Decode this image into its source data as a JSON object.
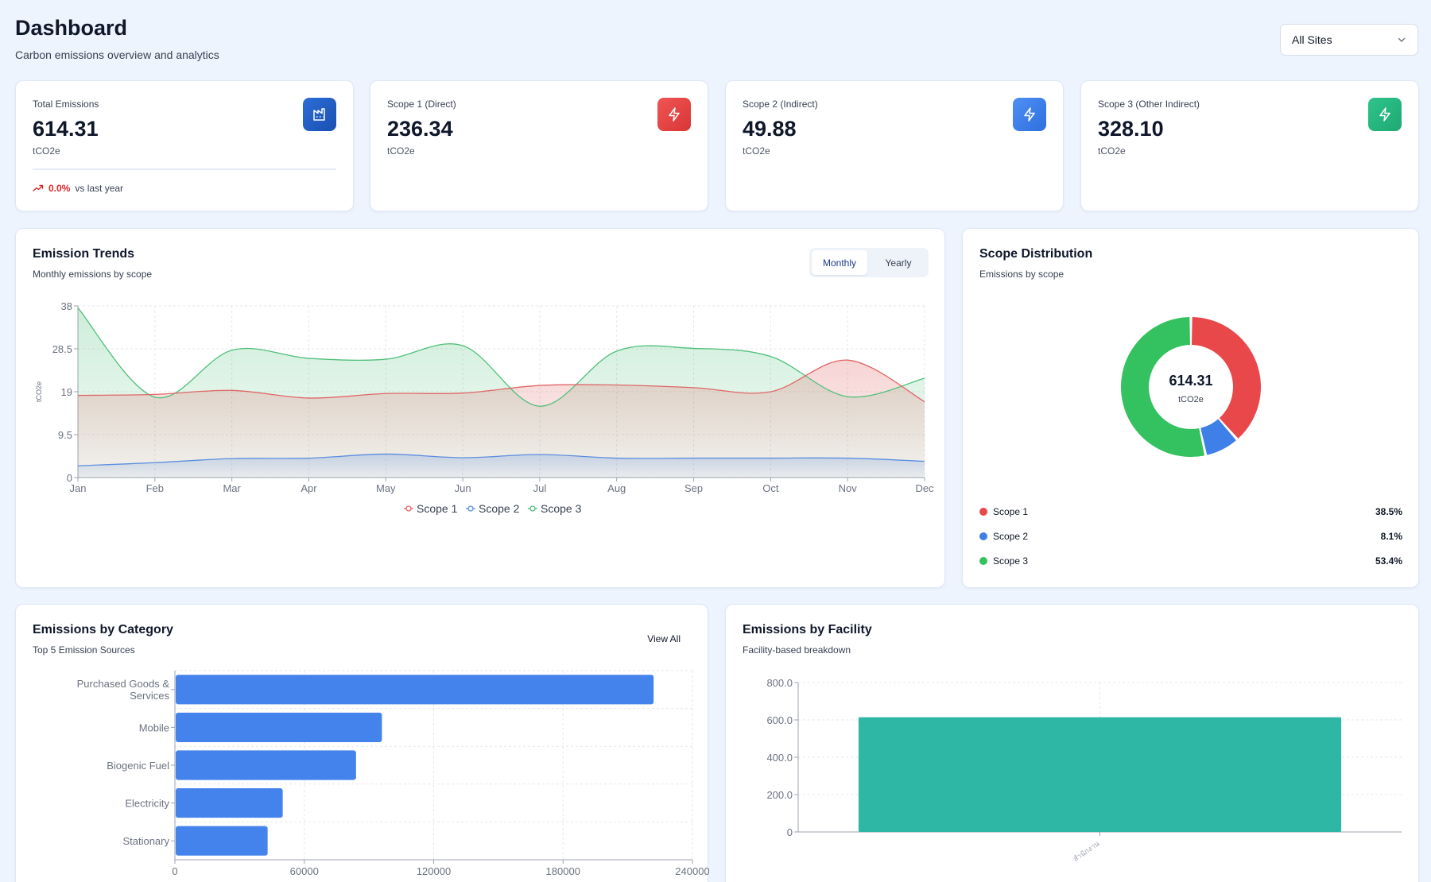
{
  "header": {
    "title": "Dashboard",
    "subtitle": "Carbon emissions overview and analytics",
    "site_filter": "All Sites"
  },
  "stats": [
    {
      "label": "Total Emissions",
      "value": "614.31",
      "unit": "tCO2e",
      "icon": "factory-icon",
      "color": "#1d5fc9",
      "trend_pct": "0.0%",
      "trend_text": "vs last year"
    },
    {
      "label": "Scope 1 (Direct)",
      "value": "236.34",
      "unit": "tCO2e",
      "icon": "lightning-icon",
      "color": "#e53e3e"
    },
    {
      "label": "Scope 2 (Indirect)",
      "value": "49.88",
      "unit": "tCO2e",
      "icon": "lightning-icon",
      "color": "#3b82f6"
    },
    {
      "label": "Scope 3 (Other Indirect)",
      "value": "328.10",
      "unit": "tCO2e",
      "icon": "lightning-icon",
      "color": "#22b07d"
    }
  ],
  "trends": {
    "title": "Emission Trends",
    "subtitle": "Monthly emissions by scope",
    "tabs": [
      "Monthly",
      "Yearly"
    ],
    "active_tab": "Monthly"
  },
  "distribution": {
    "title": "Scope Distribution",
    "subtitle": "Emissions by scope",
    "center_value": "614.31",
    "center_unit": "tCO2e",
    "legend": [
      {
        "label": "Scope 1",
        "value": "38.5%",
        "color": "#e9484a"
      },
      {
        "label": "Scope 2",
        "value": "8.1%",
        "color": "#3f7fe8"
      },
      {
        "label": "Scope 3",
        "value": "53.4%",
        "color": "#33c25f"
      }
    ]
  },
  "category": {
    "title": "Emissions by Category",
    "subtitle": "Top 5 Emission Sources",
    "view_all": "View All"
  },
  "facility": {
    "title": "Emissions by Facility",
    "subtitle": "Facility-based breakdown"
  },
  "chart_data": [
    {
      "type": "area",
      "ylabel": "tCO2e",
      "categories": [
        "Jan",
        "Feb",
        "Mar",
        "Apr",
        "May",
        "Jun",
        "Jul",
        "Aug",
        "Sep",
        "Oct",
        "Nov",
        "Dec"
      ],
      "yticks": [
        "0",
        "9.5",
        "19",
        "28.5",
        "38"
      ],
      "ylim": [
        0,
        38
      ],
      "legend_position": "bottom",
      "series": [
        {
          "name": "Scope 1",
          "color": "#e06666",
          "values": [
            18.2,
            18.4,
            19.3,
            17.6,
            18.6,
            18.7,
            20.4,
            20.5,
            19.9,
            19.0,
            26.0,
            16.8
          ]
        },
        {
          "name": "Scope 2",
          "color": "#5b8ee0",
          "values": [
            2.6,
            3.3,
            4.2,
            4.3,
            5.2,
            4.4,
            5.1,
            4.3,
            4.3,
            4.3,
            4.3,
            3.6
          ]
        },
        {
          "name": "Scope 3",
          "color": "#4fc07a",
          "values": [
            37.6,
            17.8,
            28.2,
            26.4,
            26.2,
            29.2,
            15.8,
            28.0,
            28.6,
            26.8,
            17.9,
            22.0
          ]
        }
      ]
    },
    {
      "type": "pie",
      "categories": [
        "Scope 1",
        "Scope 2",
        "Scope 3"
      ],
      "values": [
        38.5,
        8.1,
        53.4
      ],
      "colors": [
        "#e9484a",
        "#3f7fe8",
        "#33c25f"
      ]
    },
    {
      "type": "bar",
      "orientation": "horizontal",
      "categories": [
        "Purchased Goods & Services",
        "Mobile",
        "Biogenic Fuel",
        "Electricity",
        "Stationary"
      ],
      "values": [
        222000,
        96000,
        84000,
        50000,
        43000
      ],
      "xticks": [
        "0",
        "60000",
        "120000",
        "180000",
        "240000"
      ],
      "xlim": [
        0,
        240000
      ],
      "color": "#4583ec"
    },
    {
      "type": "bar",
      "categories": [
        "สำนักงาน"
      ],
      "values": [
        614.31
      ],
      "yticks": [
        "0",
        "200.0",
        "400.0",
        "600.0",
        "800.0"
      ],
      "ylim": [
        0,
        800
      ],
      "color": "#2fb7a6"
    }
  ]
}
